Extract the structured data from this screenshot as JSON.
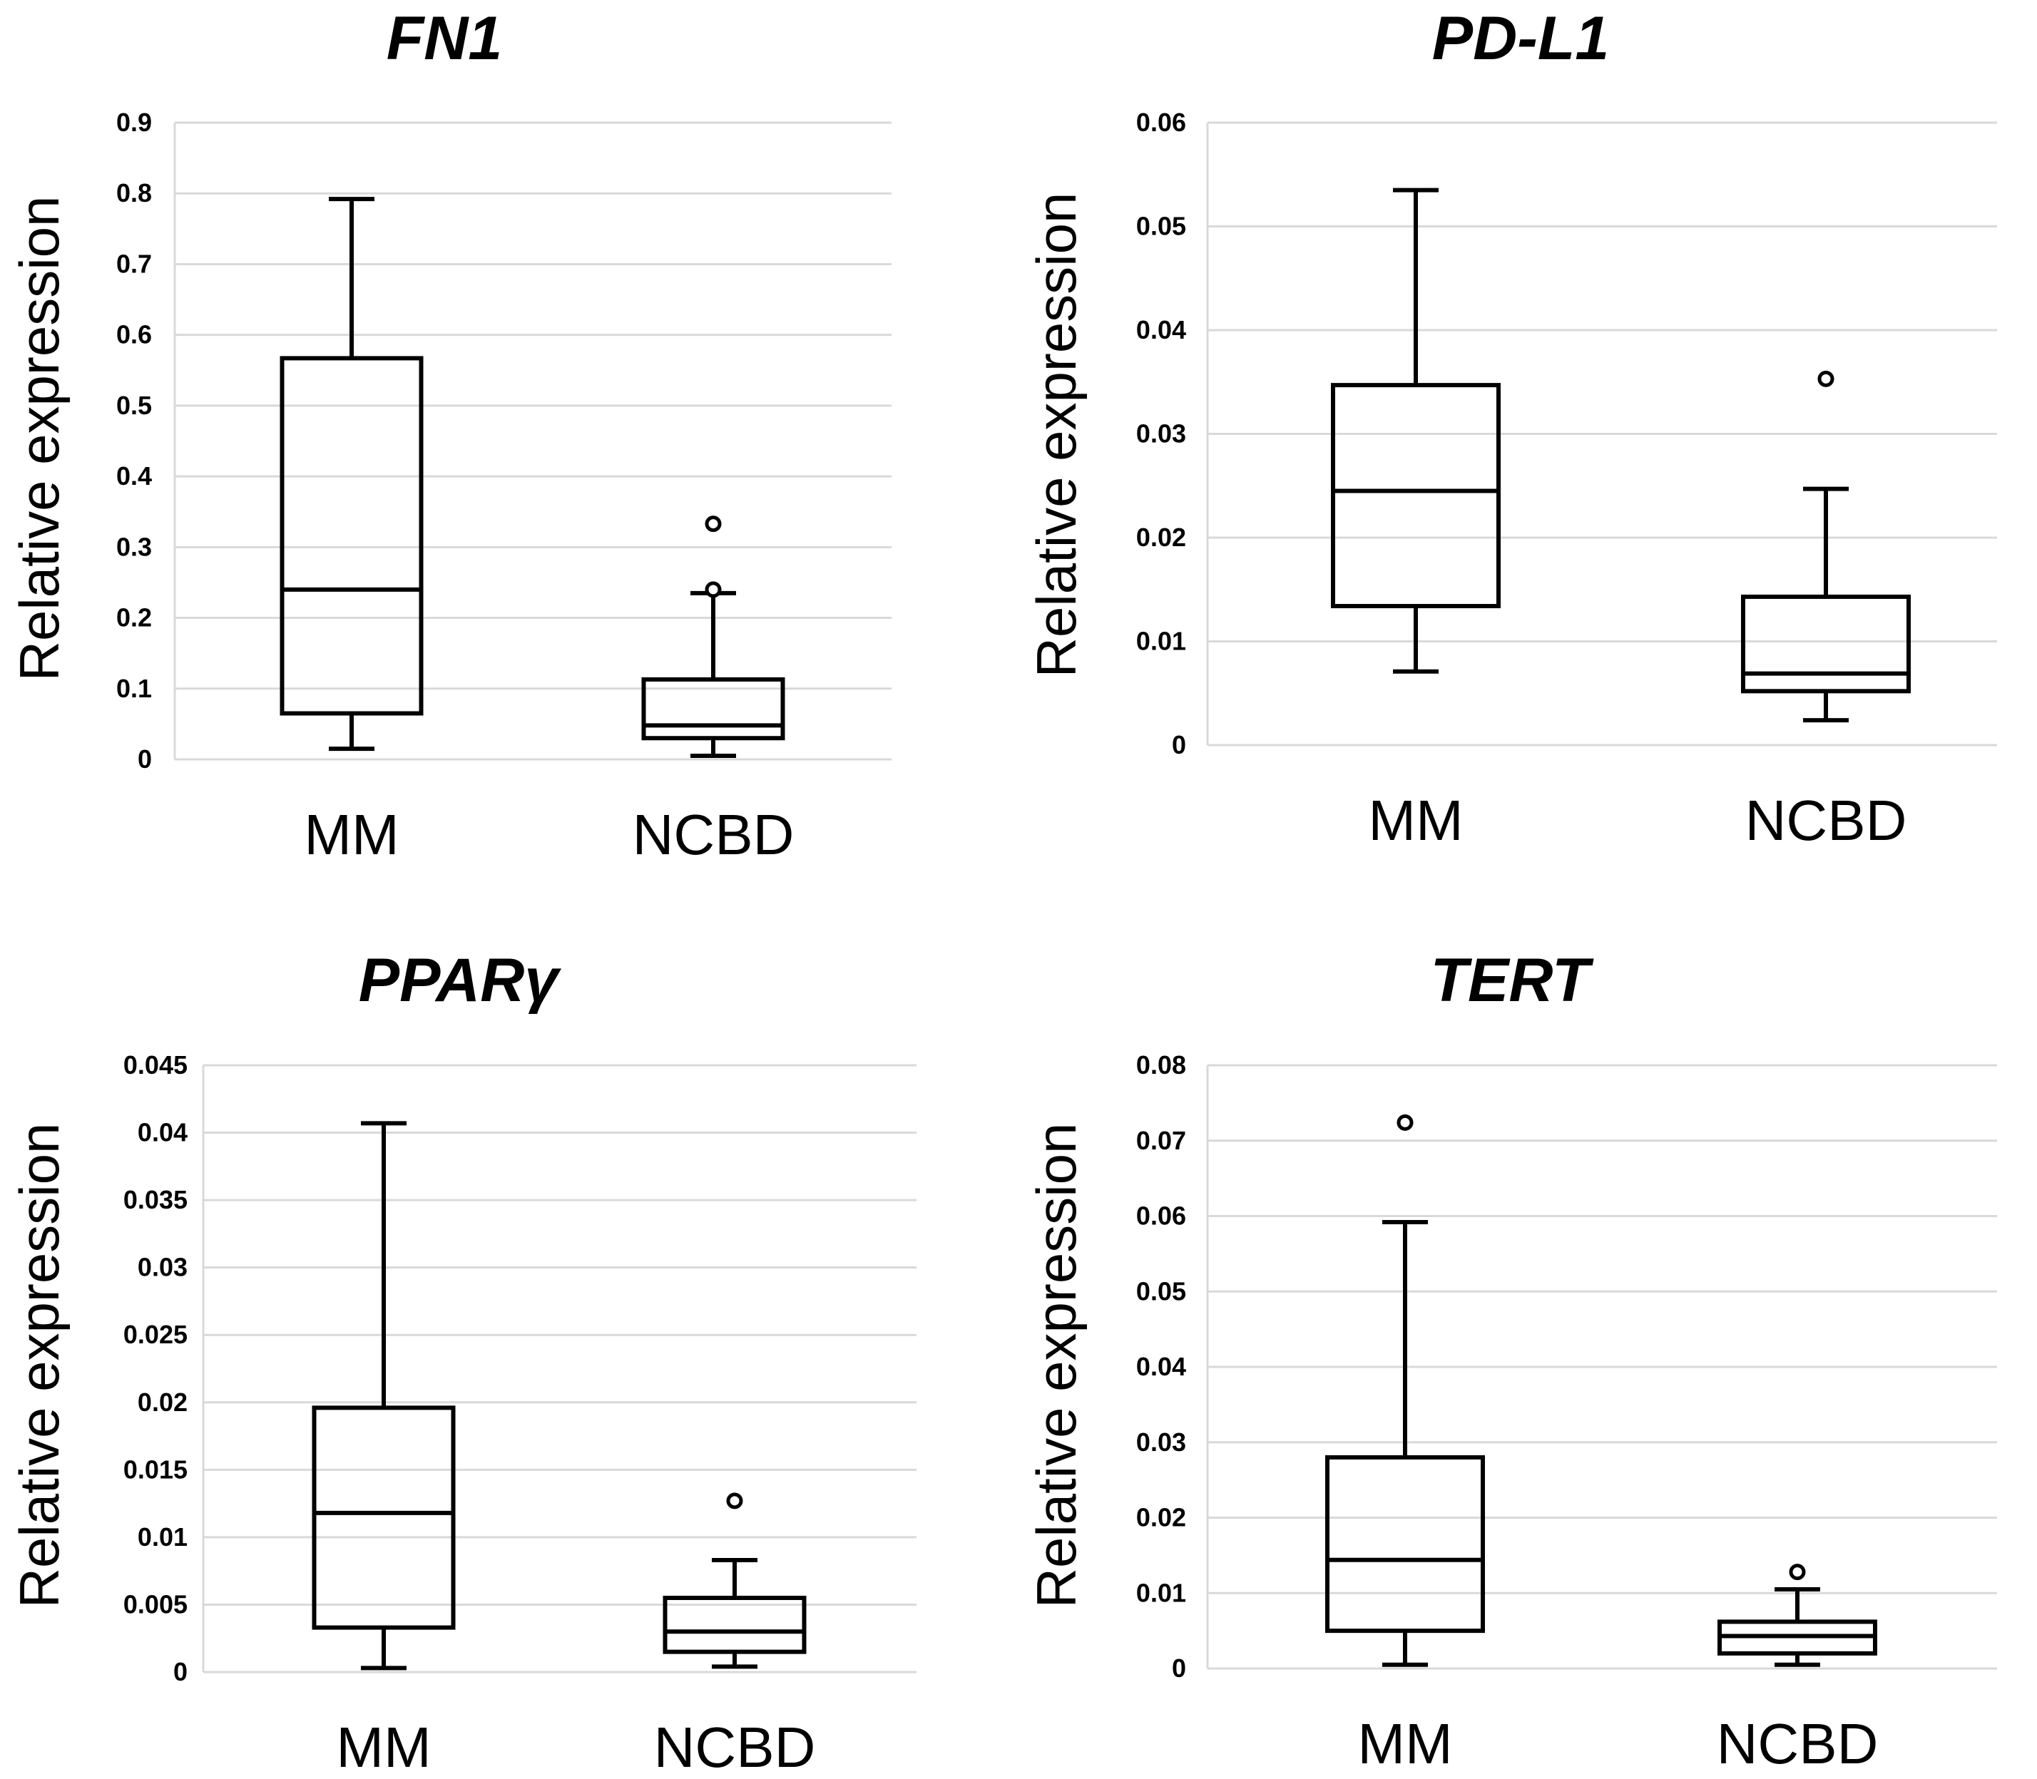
{
  "chart_data": [
    {
      "type": "box",
      "title": "FN1",
      "ylabel": "Relative expression",
      "xlabel": "",
      "ylim": [
        0,
        0.9
      ],
      "yticks": [
        "0",
        "0.1",
        "0.2",
        "0.3",
        "0.4",
        "0.5",
        "0.6",
        "0.7",
        "0.8",
        "0.9"
      ],
      "grid": true,
      "categories": [
        "MM",
        "NCBD"
      ],
      "boxes": [
        {
          "category": "MM",
          "whisker_low": 0.015,
          "q1": 0.065,
          "median": 0.24,
          "q3": 0.567,
          "whisker_high": 0.792,
          "outliers": []
        },
        {
          "category": "NCBD",
          "whisker_low": 0.005,
          "q1": 0.03,
          "median": 0.048,
          "q3": 0.113,
          "whisker_high": 0.235,
          "outliers": [
            0.24,
            0.333
          ]
        }
      ]
    },
    {
      "type": "box",
      "title": "PD-L1",
      "ylabel": "Relative expression",
      "xlabel": "",
      "ylim": [
        0,
        0.06
      ],
      "yticks": [
        "0",
        "0.01",
        "0.02",
        "0.03",
        "0.04",
        "0.05",
        "0.06"
      ],
      "grid": true,
      "categories": [
        "MM",
        "NCBD"
      ],
      "boxes": [
        {
          "category": "MM",
          "whisker_low": 0.0071,
          "q1": 0.0134,
          "median": 0.0245,
          "q3": 0.0347,
          "whisker_high": 0.0535,
          "outliers": []
        },
        {
          "category": "NCBD",
          "whisker_low": 0.0024,
          "q1": 0.0052,
          "median": 0.0069,
          "q3": 0.0143,
          "whisker_high": 0.0247,
          "outliers": [
            0.0353
          ]
        }
      ]
    },
    {
      "type": "box",
      "title": "PPARγ",
      "ylabel": "Relative expression",
      "xlabel": "",
      "ylim": [
        0,
        0.045
      ],
      "yticks": [
        "0",
        "0.005",
        "0.01",
        "0.015",
        "0.02",
        "0.025",
        "0.03",
        "0.035",
        "0.04",
        "0.045"
      ],
      "grid": true,
      "categories": [
        "MM",
        "NCBD"
      ],
      "boxes": [
        {
          "category": "MM",
          "whisker_low": 0.0003,
          "q1": 0.0033,
          "median": 0.0118,
          "q3": 0.0196,
          "whisker_high": 0.0407,
          "outliers": []
        },
        {
          "category": "NCBD",
          "whisker_low": 0.0004,
          "q1": 0.0015,
          "median": 0.003,
          "q3": 0.0055,
          "whisker_high": 0.0083,
          "outliers": [
            0.0127
          ]
        }
      ]
    },
    {
      "type": "box",
      "title": "TERT",
      "ylabel": "Relative expression",
      "xlabel": "",
      "ylim": [
        0,
        0.08
      ],
      "yticks": [
        "0",
        "0.01",
        "0.02",
        "0.03",
        "0.04",
        "0.05",
        "0.06",
        "0.07",
        "0.08"
      ],
      "grid": true,
      "categories": [
        "MM",
        "NCBD"
      ],
      "boxes": [
        {
          "category": "MM",
          "whisker_low": 0.0005,
          "q1": 0.005,
          "median": 0.0144,
          "q3": 0.028,
          "whisker_high": 0.0592,
          "outliers": [
            0.0724
          ]
        },
        {
          "category": "NCBD",
          "whisker_low": 0.0005,
          "q1": 0.002,
          "median": 0.0043,
          "q3": 0.0062,
          "whisker_high": 0.0105,
          "outliers": [
            0.0128
          ]
        }
      ]
    }
  ]
}
